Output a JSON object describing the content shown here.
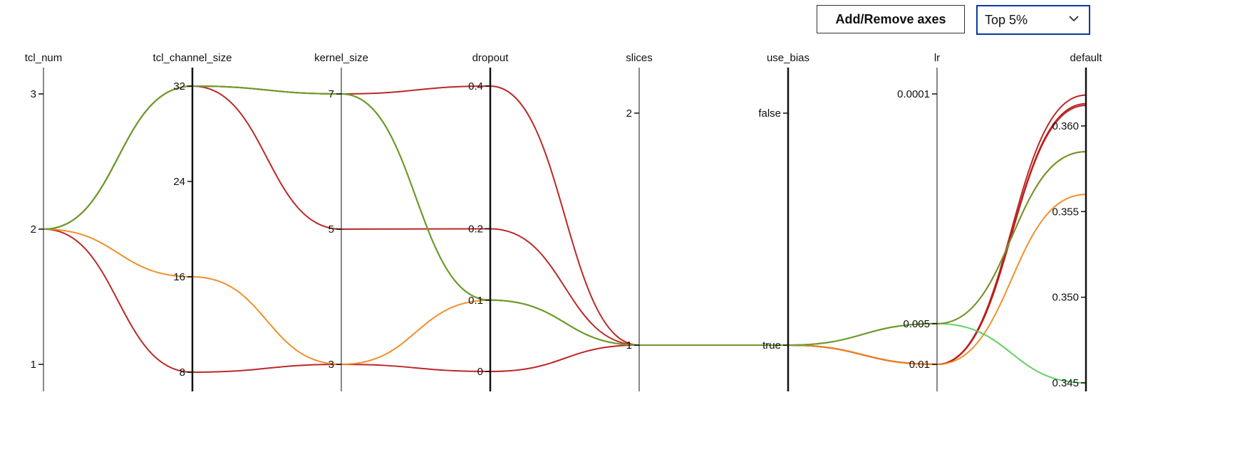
{
  "toolbar": {
    "add_remove_label": "Add/Remove axes",
    "filter_selected": "Top 5%"
  },
  "chart_data": {
    "type": "parallel-coordinates",
    "axes": [
      {
        "name": "tcl_num",
        "type": "numeric",
        "range": [
          1,
          3
        ],
        "ticks": [
          1,
          2,
          3
        ],
        "tick_labels": [
          "1",
          "2",
          "3"
        ]
      },
      {
        "name": "tcl_channel_size",
        "type": "numeric",
        "range": [
          8,
          32
        ],
        "ticks": [
          8,
          16,
          24,
          32
        ],
        "tick_labels": [
          "8",
          "16",
          "24",
          "32"
        ]
      },
      {
        "name": "kernel_size",
        "type": "numeric",
        "range": [
          3,
          7
        ],
        "ticks": [
          3,
          5,
          7
        ],
        "tick_labels": [
          "3",
          "5",
          "7"
        ]
      },
      {
        "name": "dropout",
        "type": "numeric",
        "range": [
          0,
          0.4
        ],
        "ticks": [
          0,
          0.1,
          0.2,
          0.4
        ],
        "tick_labels": [
          "0",
          "0.1",
          "0.2",
          "0.4"
        ]
      },
      {
        "name": "slices",
        "type": "numeric",
        "range": [
          1,
          2
        ],
        "ticks": [
          1,
          2
        ],
        "tick_labels": [
          "1",
          "2"
        ]
      },
      {
        "name": "use_bias",
        "type": "categorical",
        "categories": [
          "true",
          "false"
        ],
        "tick_labels": [
          "true",
          "false"
        ]
      },
      {
        "name": "lr",
        "type": "log",
        "range": [
          0.01,
          0.0001
        ],
        "ticks": [
          0.01,
          0.005,
          0.0001
        ],
        "tick_labels": [
          "0.01",
          "0.005",
          "0.0001"
        ]
      },
      {
        "name": "default",
        "type": "numeric",
        "range": [
          0.345,
          0.362
        ],
        "ticks": [
          0.345,
          0.35,
          0.355,
          0.36
        ],
        "tick_labels": [
          "0.345",
          "0.350",
          "0.355",
          "0.360"
        ]
      }
    ],
    "rows": [
      {
        "color": "#b81c1c",
        "values": [
          2,
          32,
          7,
          0.4,
          1,
          "true",
          0.01,
          0.3618
        ]
      },
      {
        "color": "#b81c1c",
        "values": [
          2,
          32,
          5,
          0.2,
          1,
          "true",
          0.01,
          0.3612
        ]
      },
      {
        "color": "#b81c1c",
        "values": [
          2,
          8,
          3,
          0,
          1,
          "true",
          0.01,
          0.3613
        ]
      },
      {
        "color": "#d4521c",
        "values": [
          2,
          32,
          7,
          0.1,
          1,
          "true",
          0.005,
          0.3585
        ]
      },
      {
        "color": "#ef8a1d",
        "values": [
          2,
          16,
          3,
          0.1,
          1,
          "true",
          0.01,
          0.356
        ]
      },
      {
        "color": "#5ccc5c",
        "values": [
          2,
          32,
          7,
          0.1,
          1,
          "true",
          0.005,
          0.345
        ]
      },
      {
        "color": "#6b9a2a",
        "values": [
          2,
          32,
          7,
          0.1,
          1,
          "true",
          0.005,
          0.3585
        ]
      }
    ]
  }
}
